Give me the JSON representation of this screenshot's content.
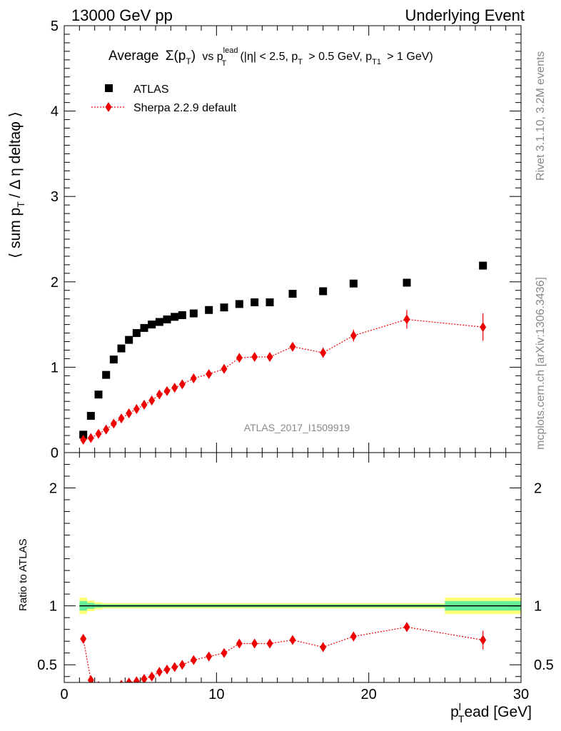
{
  "header": {
    "left": "13000 GeV pp",
    "right": "Underlying Event"
  },
  "side_labels": {
    "rivet": "Rivet 3.1.10,  3.2M events",
    "mcplots": "mcplots.cern.ch [arXiv:1306.3436]"
  },
  "chart_data": [
    {
      "type": "scatter",
      "title_main": "Average",
      "title_sigma": "Σ(p",
      "title_sub_T": "T",
      "title_close": ")",
      "title_vs": "vs p",
      "title_lead_sup": "lead",
      "title_rest_1": "(|η| < 2.5, p",
      "title_rest_2": "> 0.5 GeV, p",
      "title_sub_T1": "T1",
      "title_rest_3": "> 1 GeV)",
      "ylabel_main": "⟨ sum p",
      "ylabel_sub": "T",
      "ylabel_rest": "/ Δ η deltaφ ⟩",
      "watermark": "ATLAS_2017_I1509919",
      "xlim": [
        0,
        30
      ],
      "ylim": [
        0,
        5
      ],
      "yticks": [
        "0",
        "1",
        "2",
        "3",
        "4",
        "5"
      ],
      "legend": [
        {
          "name": "ATLAS",
          "color": "#000000",
          "marker": "square"
        },
        {
          "name": "Sherpa 2.2.9 default",
          "color": "#ee0000",
          "marker": "diamond",
          "line": "dotted"
        }
      ],
      "series": [
        {
          "name": "ATLAS",
          "color": "#000000",
          "x": [
            1.25,
            1.75,
            2.25,
            2.75,
            3.25,
            3.75,
            4.25,
            4.75,
            5.25,
            5.75,
            6.25,
            6.75,
            7.25,
            7.75,
            8.5,
            9.5,
            10.5,
            11.5,
            12.5,
            13.5,
            15,
            17,
            19,
            22.5,
            27.5
          ],
          "y": [
            0.21,
            0.43,
            0.68,
            0.91,
            1.09,
            1.22,
            1.32,
            1.4,
            1.46,
            1.5,
            1.53,
            1.56,
            1.59,
            1.61,
            1.63,
            1.67,
            1.7,
            1.74,
            1.76,
            1.76,
            1.86,
            1.89,
            1.98,
            1.99,
            2.19
          ]
        },
        {
          "name": "Sherpa 2.2.9 default",
          "color": "#ee0000",
          "x": [
            1.25,
            1.75,
            2.25,
            2.75,
            3.25,
            3.75,
            4.25,
            4.75,
            5.25,
            5.75,
            6.25,
            6.75,
            7.25,
            7.75,
            8.5,
            9.5,
            10.5,
            11.5,
            12.5,
            13.5,
            15,
            17,
            19,
            22.5,
            27.5
          ],
          "y": [
            0.15,
            0.17,
            0.22,
            0.27,
            0.34,
            0.4,
            0.46,
            0.51,
            0.56,
            0.61,
            0.68,
            0.72,
            0.76,
            0.8,
            0.87,
            0.92,
            0.98,
            1.11,
            1.12,
            1.12,
            1.24,
            1.17,
            1.37,
            1.56,
            1.47
          ],
          "yerr": [
            0.01,
            0.01,
            0.01,
            0.01,
            0.01,
            0.01,
            0.01,
            0.01,
            0.01,
            0.01,
            0.02,
            0.02,
            0.02,
            0.02,
            0.02,
            0.03,
            0.03,
            0.04,
            0.04,
            0.05,
            0.05,
            0.06,
            0.07,
            0.11,
            0.16
          ]
        }
      ]
    },
    {
      "type": "scatter",
      "ylabel": "Ratio to ATLAS",
      "xlabel_main": "p",
      "xlabel_sub": "T",
      "xlabel_sup": "l",
      "xlabel_rest": "ead [GeV]",
      "xlim": [
        0,
        30
      ],
      "ylim": [
        0.35,
        2.3
      ],
      "xticks": [
        "0",
        "10",
        "20",
        "30"
      ],
      "yticks": [
        {
          "value": 0.5,
          "label": "0.5"
        },
        {
          "value": 1,
          "label": "1"
        },
        {
          "value": 2,
          "label": "2"
        }
      ],
      "bands": {
        "green_color": "#66ee99",
        "yellow_color": "#ffff77",
        "x_edges": [
          1.0,
          1.5,
          2.0,
          2.5,
          25.0,
          30.0
        ],
        "green_half": [
          0.04,
          0.025,
          0.015,
          0.012,
          0.04
        ],
        "yellow_half": [
          0.07,
          0.045,
          0.03,
          0.022,
          0.07
        ]
      },
      "series": [
        {
          "name": "Sherpa 2.2.9 default",
          "color": "#ee0000",
          "x": [
            1.25,
            1.75,
            2.25,
            2.75,
            3.25,
            3.75,
            4.25,
            4.75,
            5.25,
            5.75,
            6.25,
            6.75,
            7.25,
            7.75,
            8.5,
            9.5,
            10.5,
            11.5,
            12.5,
            13.5,
            15,
            17,
            19,
            22.5,
            27.5
          ],
          "y": [
            0.72,
            0.37,
            0.32,
            0.3,
            0.31,
            0.33,
            0.35,
            0.36,
            0.38,
            0.4,
            0.44,
            0.46,
            0.48,
            0.5,
            0.54,
            0.57,
            0.6,
            0.68,
            0.68,
            0.68,
            0.71,
            0.65,
            0.74,
            0.82,
            0.71
          ],
          "yerr": [
            0.01,
            0.01,
            0.01,
            0.01,
            0.01,
            0.01,
            0.01,
            0.01,
            0.01,
            0.01,
            0.01,
            0.01,
            0.01,
            0.01,
            0.02,
            0.02,
            0.02,
            0.03,
            0.03,
            0.03,
            0.03,
            0.04,
            0.04,
            0.04,
            0.08
          ]
        }
      ]
    }
  ]
}
